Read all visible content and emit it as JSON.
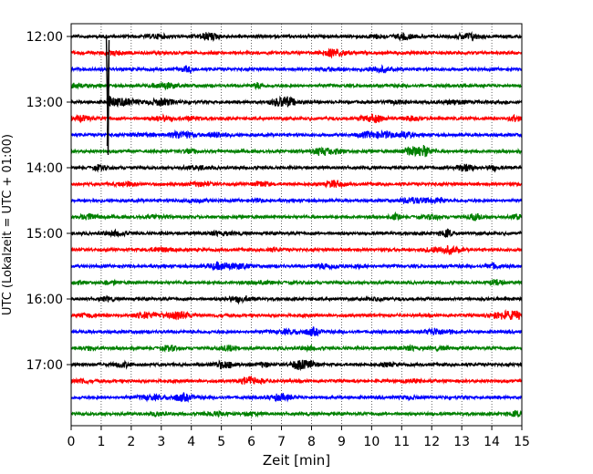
{
  "chart_data": {
    "type": "line",
    "title": "",
    "xlabel": "Zeit  [min]",
    "ylabel": "UTC (Lokalzeit = UTC + 01:00)",
    "xlim": [
      0,
      15
    ],
    "x_ticks": [
      0,
      1,
      2,
      3,
      4,
      5,
      6,
      7,
      8,
      9,
      10,
      11,
      12,
      13,
      14,
      15
    ],
    "y_tick_labels": [
      "12:00",
      "13:00",
      "14:00",
      "15:00",
      "16:00",
      "17:00"
    ],
    "trace_interval_minutes": 15,
    "first_trace": "12:00",
    "trace_count": 24,
    "trace_colors": [
      "#000000",
      "#ff0000",
      "#0000ff",
      "#008000"
    ],
    "vertical_grid": "dotted",
    "event": {
      "trace_start": "13:00",
      "minute": 1.2
    }
  }
}
